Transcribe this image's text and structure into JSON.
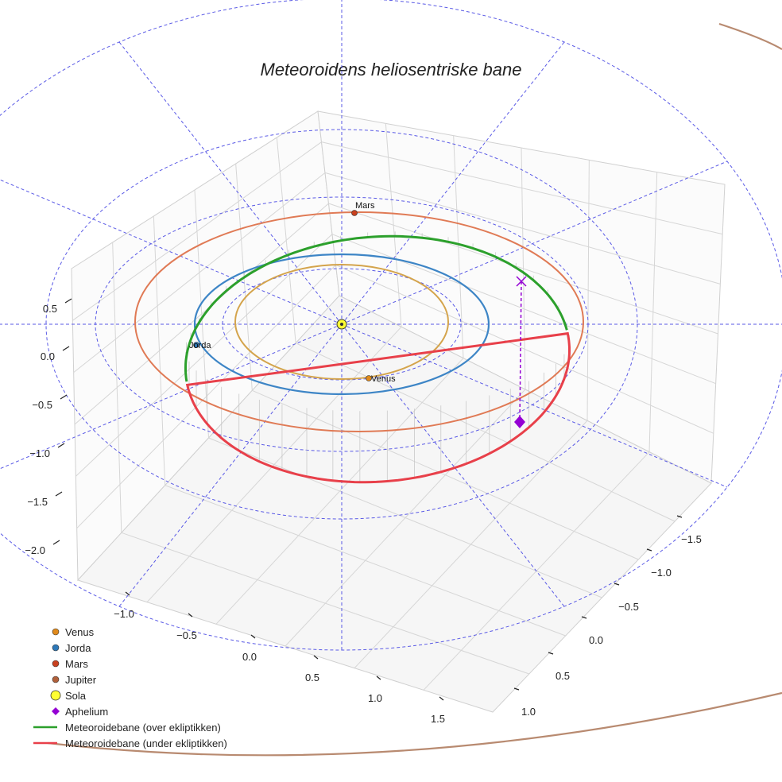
{
  "chart_data": {
    "type": "scatter",
    "subtype": "3d-orbit",
    "title": "Meteoroidens heliosentriske bane",
    "axes": {
      "x_ticks": [
        "−1.0",
        "−0.5",
        "0.0",
        "0.5",
        "1.0",
        "1.5"
      ],
      "y_ticks": [
        "−1.5",
        "−1.0",
        "−0.5",
        "0.0",
        "0.5",
        "1.0"
      ],
      "z_ticks": [
        "0.5",
        "0.0",
        "−0.5",
        "−1.0",
        "−1.5",
        "−2.0"
      ],
      "grid": true,
      "ecliptic_reference_circles": true
    },
    "planets": [
      {
        "name": "Venus",
        "label": "Venus",
        "orbit_color": "#d4a44c",
        "marker_color": "#e08a1c"
      },
      {
        "name": "Jorda",
        "label": "Jorda",
        "orbit_color": "#3d85c6",
        "marker_color": "#2e78b8"
      },
      {
        "name": "Mars",
        "label": "Mars",
        "orbit_color": "#e07a55",
        "marker_color": "#c8401f"
      },
      {
        "name": "Jupiter",
        "label": "",
        "orbit_color": "#b88a70",
        "marker_color": "#b0603a"
      }
    ],
    "sun": {
      "name": "Sola",
      "color": "#ffff33"
    },
    "aphelium": {
      "name": "Aphelium",
      "color": "#9400d3"
    },
    "meteoroid": {
      "above_label": "Meteoroidebane (over ekliptikken)",
      "below_label": "Meteoroidebane (under ekliptikken)",
      "above_color": "#2ca02c",
      "below_color": "#e8404a"
    },
    "legend": {
      "placement": "bottom-left",
      "entries": [
        {
          "label": "Venus",
          "marker": "dot",
          "color": "#e08a1c"
        },
        {
          "label": "Jorda",
          "marker": "dot",
          "color": "#2e78b8"
        },
        {
          "label": "Mars",
          "marker": "dot",
          "color": "#c8401f"
        },
        {
          "label": "Jupiter",
          "marker": "dot",
          "color": "#b0603a"
        },
        {
          "label": "Sola",
          "marker": "bigdot",
          "color": "#ffff33"
        },
        {
          "label": "Aphelium",
          "marker": "diamond",
          "color": "#9400d3"
        },
        {
          "label": "Meteoroidebane (over ekliptikken)",
          "marker": "line",
          "color": "#2ca02c"
        },
        {
          "label": "Meteoroidebane (under ekliptikken)",
          "marker": "line",
          "color": "#e8404a"
        }
      ]
    }
  }
}
